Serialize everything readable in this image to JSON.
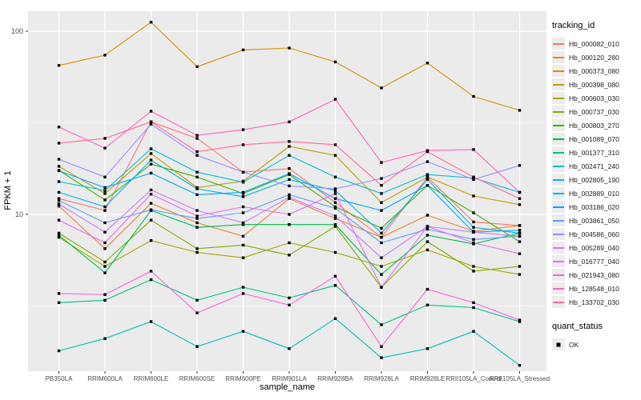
{
  "chart_data": {
    "type": "line",
    "title": "",
    "xlabel": "sample_name",
    "ylabel": "FPKM + 1",
    "y_scale": "log10",
    "ylim": [
      1.39,
      128
    ],
    "y_ticks": [
      100,
      10
    ],
    "y_minor": [
      31.62,
      3.162
    ],
    "grid": "on",
    "legend_position": "right",
    "panel_bg": "#EBEBEB",
    "grid_color": "#FFFFFF",
    "tick_text_color": "#4D4D4D",
    "point_color": "#000000",
    "categories": [
      "PB350LA",
      "RRIM600LA",
      "RRIM600LE",
      "RRIM600SE",
      "RRIM600PE",
      "RRIM901LA",
      "RRIM928BA",
      "RRIM928LA",
      "RRIM928LE",
      "RRII105LA_Control",
      "RRII105LA_Stressed"
    ],
    "legend": {
      "title": "tracking_id",
      "quant_title": "quant_status",
      "quant_label": "OK"
    },
    "series": [
      {
        "name": "Hb_000082_010",
        "color": "#F8766D",
        "values": [
          12.2,
          10.5,
          32.0,
          26.0,
          17.0,
          17.8,
          11.6,
          7.5,
          16.0,
          9.1,
          8.7
        ]
      },
      {
        "name": "Hb_000120_280",
        "color": "#EA8331",
        "values": [
          11.1,
          6.5,
          11.5,
          9.0,
          7.6,
          12.2,
          9.5,
          7.5,
          9.9,
          8.1,
          8.7
        ]
      },
      {
        "name": "Hb_000373_080",
        "color": "#D89000",
        "values": [
          65,
          74,
          112,
          64,
          79,
          81,
          68,
          49,
          67,
          44,
          37
        ]
      },
      {
        "name": "Hb_000398_080",
        "color": "#C09B00",
        "values": [
          18.3,
          13.0,
          21.5,
          14.0,
          15.2,
          23.5,
          21.0,
          11.6,
          16.0,
          12.6,
          11.3
        ]
      },
      {
        "name": "Hb_000603_030",
        "color": "#A3A500",
        "values": [
          7.5,
          5.2,
          7.2,
          6.2,
          5.8,
          7.0,
          6.2,
          5.2,
          6.4,
          5.2,
          4.7
        ]
      },
      {
        "name": "Hb_000737_030",
        "color": "#7CAE00",
        "values": [
          7.9,
          5.5,
          9.3,
          6.5,
          6.8,
          6.0,
          8.6,
          4.0,
          7.1,
          4.9,
          5.2
        ]
      },
      {
        "name": "Hb_000803_270",
        "color": "#39B600",
        "values": [
          17.4,
          12.0,
          18.8,
          16.0,
          13.0,
          16.5,
          11.0,
          8.4,
          14.4,
          10.2,
          7.1
        ]
      },
      {
        "name": "Hb_001089_070",
        "color": "#00BB4E",
        "values": [
          7.7,
          4.8,
          10.5,
          8.5,
          8.8,
          8.8,
          8.8,
          4.7,
          7.7,
          6.9,
          7.9
        ]
      },
      {
        "name": "Hb_001377_310",
        "color": "#00C087",
        "values": [
          3.3,
          3.4,
          4.4,
          3.4,
          4.0,
          3.5,
          4.1,
          2.5,
          3.2,
          3.1,
          2.6
        ]
      },
      {
        "name": "Hb_002471_240",
        "color": "#00C0B8",
        "values": [
          1.8,
          2.1,
          2.6,
          1.9,
          2.3,
          1.85,
          2.7,
          1.65,
          1.85,
          2.3,
          1.5
        ]
      },
      {
        "name": "Hb_002805_190",
        "color": "#00BCD8",
        "values": [
          15.1,
          13.5,
          22.8,
          17.0,
          15.0,
          21.0,
          16.0,
          13.0,
          16.5,
          15.8,
          13.2
        ]
      },
      {
        "name": "Hb_002889_010",
        "color": "#00B4EF",
        "values": [
          13.2,
          11.0,
          19.8,
          13.8,
          12.5,
          15.5,
          13.5,
          7.9,
          15.5,
          8.5,
          7.9
        ]
      },
      {
        "name": "Hb_003186_020",
        "color": "#00A5FF",
        "values": [
          17.3,
          14.0,
          16.8,
          12.8,
          13.2,
          16.7,
          12.2,
          10.5,
          14.4,
          8.0,
          8.2
        ]
      },
      {
        "name": "Hb_003861_050",
        "color": "#619CFF",
        "values": [
          11.9,
          9.0,
          10.6,
          9.5,
          10.2,
          12.8,
          10.8,
          7.0,
          8.3,
          7.3,
          7.6
        ]
      },
      {
        "name": "Hb_004586_060",
        "color": "#9590FF",
        "values": [
          20.0,
          16.0,
          31.1,
          21.0,
          17.0,
          14.3,
          13.8,
          15.7,
          19.4,
          15.5,
          18.5
        ]
      },
      {
        "name": "Hb_005289_040",
        "color": "#C77CFF",
        "values": [
          11.4,
          8.0,
          13.6,
          10.5,
          9.0,
          12.4,
          9.8,
          5.8,
          8.6,
          8.0,
          7.6
        ]
      },
      {
        "name": "Hb_016777_040",
        "color": "#E76BF3",
        "values": [
          9.3,
          7.0,
          12.9,
          9.8,
          11.0,
          10.0,
          13.0,
          4.0,
          8.6,
          7.0,
          6.1
        ]
      },
      {
        "name": "Hb_021943_080",
        "color": "#FA62DB",
        "values": [
          3.7,
          3.65,
          4.9,
          2.9,
          3.7,
          3.2,
          4.6,
          1.9,
          3.9,
          3.3,
          2.65
        ]
      },
      {
        "name": "Hb_128548_010",
        "color": "#FF62BC",
        "values": [
          30.0,
          23.0,
          36.6,
          27.0,
          29.0,
          32.0,
          42.5,
          19.2,
          22.3,
          22.6,
          13.2
        ]
      },
      {
        "name": "Hb_133702_030",
        "color": "#FF6A98",
        "values": [
          24.5,
          26.0,
          32.0,
          22.0,
          24.0,
          25.0,
          24.0,
          14.4,
          22.0,
          16.0,
          12.2
        ]
      }
    ]
  }
}
